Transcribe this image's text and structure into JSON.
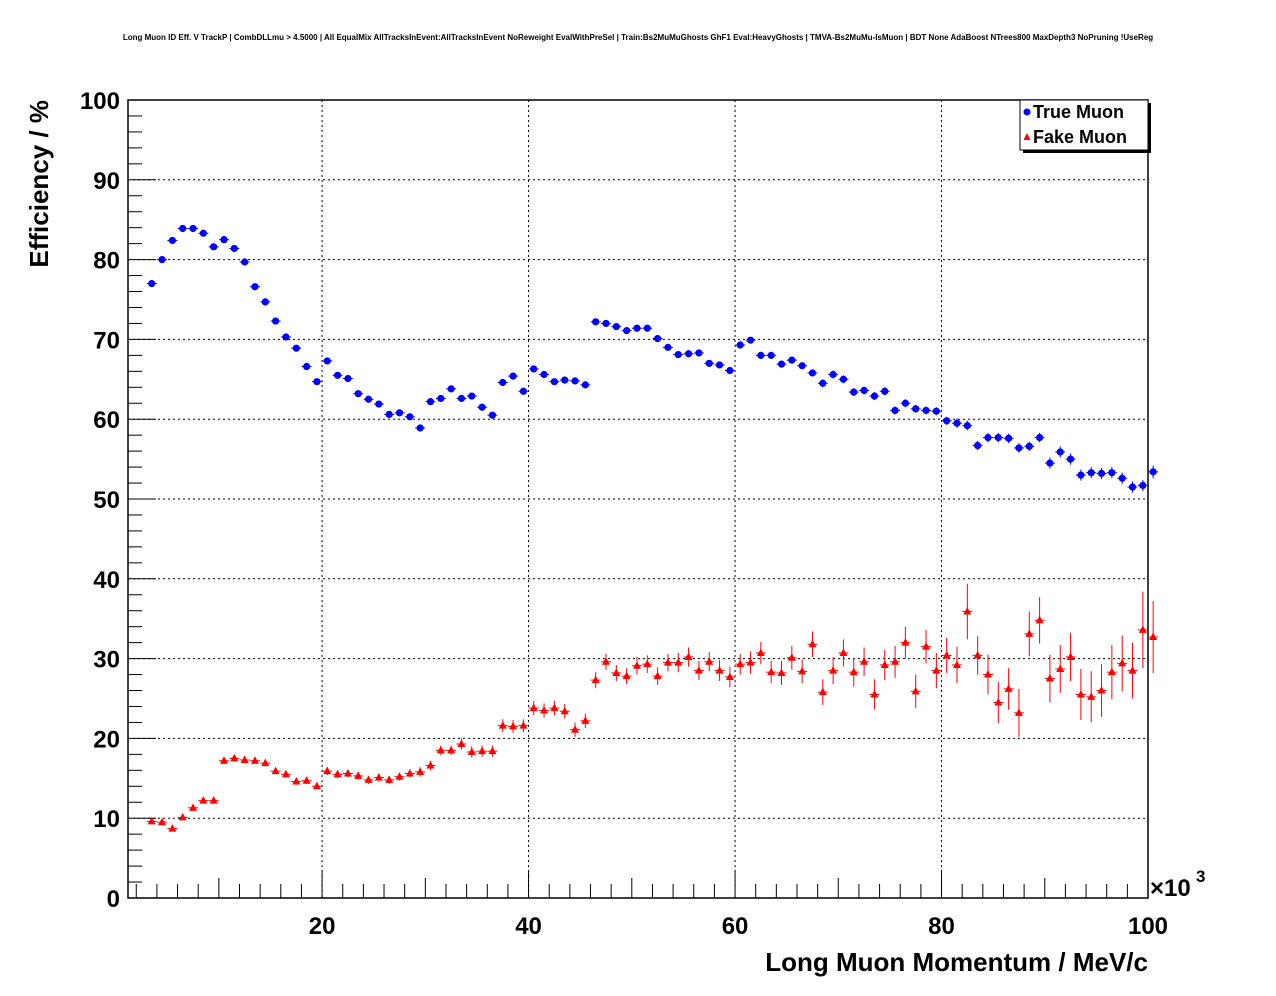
{
  "title": "Long Muon ID Eff. V TrackP | CombDLLmu > 4.5000 | All EqualMix AllTracksInEvent:AllTracksInEvent NoReweight EvalWithPreSel | Train:Bs2MuMuGhosts GhF1 Eval:HeavyGhosts | TMVA-Bs2MuMu-IsMuon | BDT None AdaBoost NTrees800 MaxDepth3 NoPruning !UseReg",
  "chart_data": {
    "type": "scatter",
    "title": "Long Muon ID Eff. V TrackP | CombDLLmu > 4.5000 | All EqualMix AllTracksInEvent:AllTracksInEvent NoReweight EvalWithPreSel | Train:Bs2MuMuGhosts GhF1 Eval:HeavyGhosts | TMVA-Bs2MuMu-IsMuon | BDT None AdaBoost NTrees800 MaxDepth3 NoPruning !UseReg",
    "xlabel": "Long Muon Momentum / MeV/c",
    "ylabel": "Efficiency / %",
    "x_exponent_label": "×10",
    "x_exponent_power": "3",
    "xlim": [
      1.2,
      100
    ],
    "ylim": [
      0,
      100
    ],
    "x_ticks": [
      20,
      40,
      60,
      80,
      100
    ],
    "y_ticks": [
      0,
      10,
      20,
      30,
      40,
      50,
      60,
      70,
      80,
      90,
      100
    ],
    "grid": true,
    "legend_position": "top-right",
    "series": [
      {
        "name": "True Muon",
        "color": "#0000ff",
        "marker": "circle",
        "x": [
          3.5,
          4.5,
          5.5,
          6.5,
          7.5,
          8.5,
          9.5,
          10.5,
          11.5,
          12.5,
          13.5,
          14.5,
          15.5,
          16.5,
          17.5,
          18.5,
          19.5,
          20.5,
          21.5,
          22.5,
          23.5,
          24.5,
          25.5,
          26.5,
          27.5,
          28.5,
          29.5,
          30.5,
          31.5,
          32.5,
          33.5,
          34.5,
          35.5,
          36.5,
          37.5,
          38.5,
          39.5,
          40.5,
          41.5,
          42.5,
          43.5,
          44.5,
          45.5,
          46.5,
          47.5,
          48.5,
          49.5,
          50.5,
          51.5,
          52.5,
          53.5,
          54.5,
          55.5,
          56.5,
          57.5,
          58.5,
          59.5,
          60.5,
          61.5,
          62.5,
          63.5,
          64.5,
          65.5,
          66.5,
          67.5,
          68.5,
          69.5,
          70.5,
          71.5,
          72.5,
          73.5,
          74.5,
          75.5,
          76.5,
          77.5,
          78.5,
          79.5,
          80.5,
          81.5,
          82.5,
          83.5,
          84.5,
          85.5,
          86.5,
          87.5,
          88.5,
          89.5,
          90.5,
          91.5,
          92.5,
          93.5,
          94.5,
          95.5,
          96.5,
          97.5,
          98.5,
          99.5,
          100.5
        ],
        "values": [
          77.0,
          80.0,
          82.4,
          83.9,
          83.9,
          83.3,
          81.6,
          82.5,
          81.4,
          79.7,
          76.6,
          74.7,
          72.3,
          70.3,
          68.9,
          66.6,
          64.7,
          67.3,
          65.5,
          65.1,
          63.2,
          62.5,
          61.9,
          60.6,
          60.8,
          60.3,
          58.9,
          62.2,
          62.6,
          63.8,
          62.6,
          62.9,
          61.5,
          60.5,
          64.6,
          65.4,
          63.5,
          66.3,
          65.6,
          64.7,
          64.9,
          64.8,
          64.3,
          72.2,
          72.0,
          71.6,
          71.1,
          71.4,
          71.4,
          70.1,
          69.0,
          68.1,
          68.2,
          68.3,
          67.0,
          66.8,
          66.1,
          69.3,
          69.9,
          68.0,
          68.0,
          66.9,
          67.4,
          66.7,
          65.8,
          64.5,
          65.6,
          65.0,
          63.4,
          63.6,
          62.9,
          63.5,
          61.1,
          62.0,
          61.3,
          61.1,
          61.0,
          59.8,
          59.5,
          59.2,
          56.7,
          57.7,
          57.7,
          57.6,
          56.4,
          56.6,
          57.7,
          54.5,
          55.9,
          55.0,
          53.0,
          53.3,
          53.2,
          53.3,
          52.6,
          51.5,
          51.7,
          53.4
        ],
        "errors": [
          0.4,
          0.4,
          0.4,
          0.4,
          0.4,
          0.4,
          0.4,
          0.4,
          0.4,
          0.4,
          0.4,
          0.4,
          0.4,
          0.4,
          0.4,
          0.4,
          0.4,
          0.4,
          0.4,
          0.4,
          0.4,
          0.4,
          0.4,
          0.4,
          0.4,
          0.4,
          0.4,
          0.4,
          0.4,
          0.4,
          0.4,
          0.4,
          0.4,
          0.4,
          0.4,
          0.4,
          0.4,
          0.4,
          0.4,
          0.4,
          0.4,
          0.4,
          0.4,
          0.4,
          0.4,
          0.4,
          0.4,
          0.4,
          0.4,
          0.4,
          0.4,
          0.4,
          0.4,
          0.4,
          0.4,
          0.4,
          0.4,
          0.4,
          0.4,
          0.4,
          0.4,
          0.4,
          0.4,
          0.4,
          0.4,
          0.5,
          0.5,
          0.5,
          0.5,
          0.5,
          0.5,
          0.5,
          0.5,
          0.5,
          0.5,
          0.5,
          0.5,
          0.5,
          0.6,
          0.6,
          0.6,
          0.6,
          0.6,
          0.6,
          0.6,
          0.6,
          0.6,
          0.7,
          0.7,
          0.7,
          0.7,
          0.7,
          0.7,
          0.7,
          0.7,
          0.7,
          0.7,
          0.8
        ]
      },
      {
        "name": "Fake Muon",
        "color": "#ff0000",
        "marker": "triangle",
        "x": [
          3.5,
          4.5,
          5.5,
          6.5,
          7.5,
          8.5,
          9.5,
          10.5,
          11.5,
          12.5,
          13.5,
          14.5,
          15.5,
          16.5,
          17.5,
          18.5,
          19.5,
          20.5,
          21.5,
          22.5,
          23.5,
          24.5,
          25.5,
          26.5,
          27.5,
          28.5,
          29.5,
          30.5,
          31.5,
          32.5,
          33.5,
          34.5,
          35.5,
          36.5,
          37.5,
          38.5,
          39.5,
          40.5,
          41.5,
          42.5,
          43.5,
          44.5,
          45.5,
          46.5,
          47.5,
          48.5,
          49.5,
          50.5,
          51.5,
          52.5,
          53.5,
          54.5,
          55.5,
          56.5,
          57.5,
          58.5,
          59.5,
          60.5,
          61.5,
          62.5,
          63.5,
          64.5,
          65.5,
          66.5,
          67.5,
          68.5,
          69.5,
          70.5,
          71.5,
          72.5,
          73.5,
          74.5,
          75.5,
          76.5,
          77.5,
          78.5,
          79.5,
          80.5,
          81.5,
          82.5,
          83.5,
          84.5,
          85.5,
          86.5,
          87.5,
          88.5,
          89.5,
          90.5,
          91.5,
          92.5,
          93.5,
          94.5,
          95.5,
          96.5,
          97.5,
          98.5,
          99.5,
          100.5
        ],
        "values": [
          9.6,
          9.5,
          8.7,
          10.1,
          11.3,
          12.2,
          12.2,
          17.2,
          17.5,
          17.3,
          17.2,
          16.9,
          15.9,
          15.5,
          14.6,
          14.7,
          14.0,
          15.9,
          15.5,
          15.6,
          15.3,
          14.8,
          15.1,
          14.8,
          15.2,
          15.6,
          15.8,
          16.6,
          18.5,
          18.5,
          19.3,
          18.3,
          18.4,
          18.4,
          21.6,
          21.5,
          21.6,
          23.8,
          23.5,
          23.8,
          23.4,
          21.1,
          22.2,
          27.3,
          29.6,
          28.2,
          27.8,
          29.1,
          29.3,
          27.8,
          29.5,
          29.5,
          30.2,
          28.5,
          29.6,
          28.5,
          27.7,
          29.3,
          29.5,
          30.7,
          28.3,
          28.2,
          30.1,
          28.4,
          31.8,
          25.8,
          28.5,
          30.7,
          28.3,
          29.6,
          25.5,
          29.2,
          29.6,
          32.0,
          25.9,
          31.5,
          28.5,
          30.4,
          29.2,
          35.9,
          30.4,
          28.0,
          24.5,
          26.2,
          23.2,
          33.1,
          34.8,
          27.5,
          28.7,
          30.2,
          25.5,
          25.2,
          26.0,
          28.3,
          29.4,
          28.5,
          33.6,
          32.7
        ],
        "errors": [
          0.3,
          0.3,
          0.3,
          0.3,
          0.3,
          0.3,
          0.3,
          0.4,
          0.4,
          0.4,
          0.4,
          0.4,
          0.4,
          0.4,
          0.4,
          0.4,
          0.4,
          0.5,
          0.5,
          0.5,
          0.5,
          0.5,
          0.5,
          0.5,
          0.5,
          0.5,
          0.6,
          0.6,
          0.6,
          0.6,
          0.7,
          0.7,
          0.7,
          0.7,
          0.8,
          0.8,
          0.8,
          0.9,
          0.9,
          0.9,
          0.9,
          0.9,
          0.9,
          1.0,
          1.0,
          1.0,
          1.0,
          1.1,
          1.1,
          1.1,
          1.1,
          1.2,
          1.2,
          1.2,
          1.2,
          1.3,
          1.3,
          1.3,
          1.4,
          1.4,
          1.4,
          1.5,
          1.5,
          1.5,
          1.6,
          1.6,
          1.7,
          1.7,
          1.8,
          1.8,
          1.9,
          1.9,
          2.0,
          2.0,
          2.1,
          2.1,
          2.2,
          2.2,
          2.3,
          3.5,
          2.4,
          2.5,
          2.6,
          2.6,
          3.0,
          2.8,
          2.9,
          3.0,
          3.0,
          3.0,
          3.2,
          3.2,
          3.3,
          3.4,
          3.5,
          3.5,
          4.8,
          4.5
        ]
      }
    ]
  }
}
